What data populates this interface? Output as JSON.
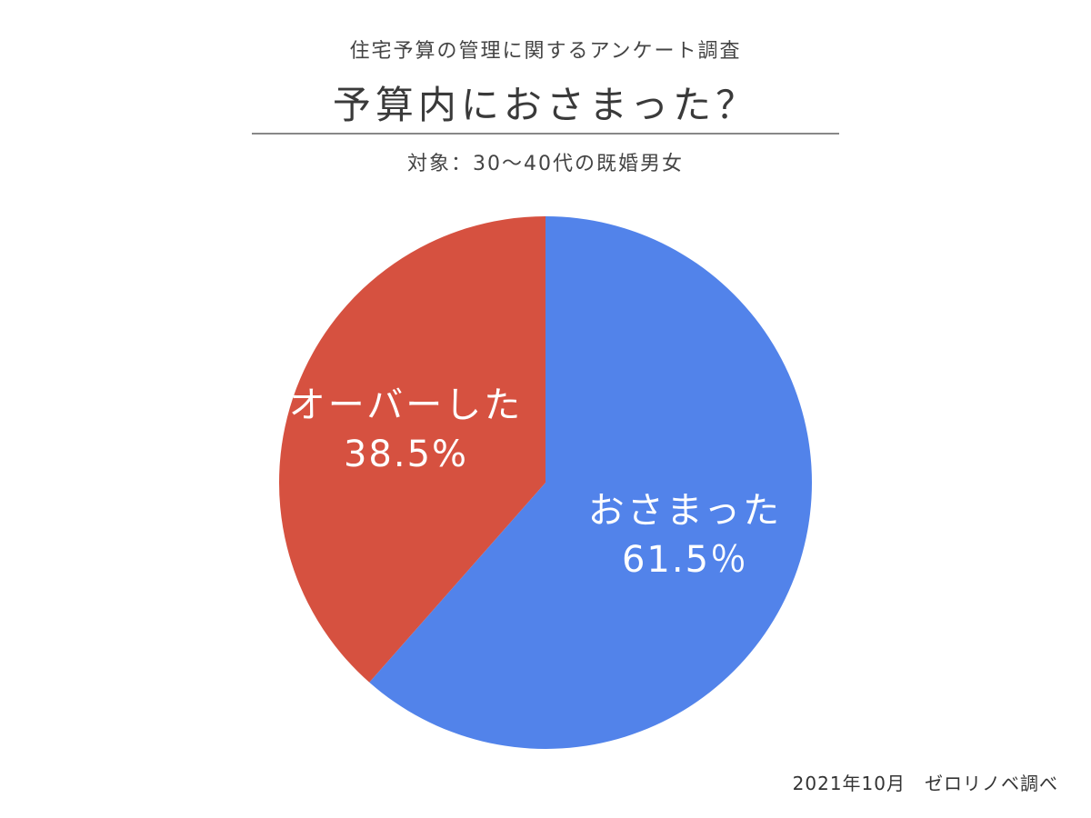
{
  "header": {
    "survey_title": "住宅予算の管理に関するアンケート調査",
    "main_title": "予算内におさまった？",
    "subtitle": "対象：30〜40代の既婚男女"
  },
  "footer": {
    "source_note": "2021年10月　ゼロリノベ調べ"
  },
  "chart_data": {
    "type": "pie",
    "title": "予算内におさまった？",
    "slices": [
      {
        "label": "おさまった",
        "value": 61.5,
        "value_label": "61.5％",
        "color": "#5283EA"
      },
      {
        "label": "オーバーした",
        "value": 38.5,
        "value_label": "38.5%",
        "color": "#D65140"
      }
    ],
    "start": "12 o'clock",
    "direction": "clockwise",
    "legend": "none",
    "data_labels": "inside"
  }
}
